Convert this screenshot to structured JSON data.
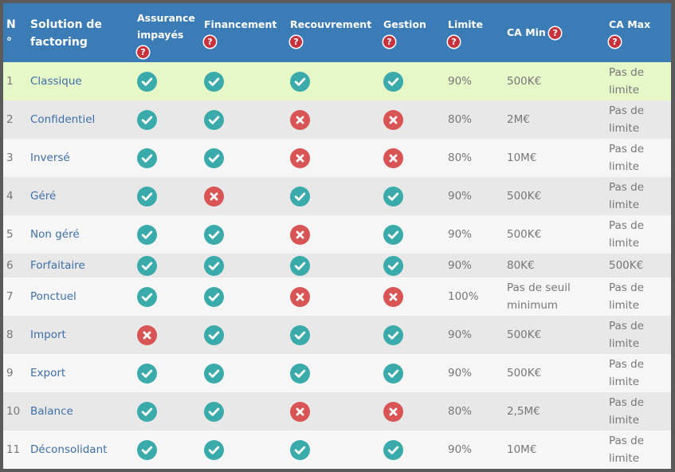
{
  "headers": {
    "num": "N °",
    "solution": "Solution de factoring",
    "assurance": "Assurance impayés",
    "financement": "Financement",
    "recouvrement": "Recouvrement",
    "gestion": "Gestion",
    "limite": "Limite",
    "ca_min": "CA Min",
    "ca_max": "CA Max",
    "help_glyph": "?"
  },
  "colors": {
    "header_bg": "#3b7bb6",
    "yes": "#3aabaa",
    "no": "#d95555",
    "help": "#c8323c",
    "highlight_row": "#e6f7c8"
  },
  "rows": [
    {
      "num": "1",
      "name": "Classique",
      "assurance": true,
      "financement": true,
      "recouvrement": true,
      "gestion": true,
      "limite": "90%",
      "ca_min": "500K€",
      "ca_max": "Pas de limite"
    },
    {
      "num": "2",
      "name": "Confidentiel",
      "assurance": true,
      "financement": true,
      "recouvrement": false,
      "gestion": false,
      "limite": "80%",
      "ca_min": "2M€",
      "ca_max": "Pas de limite"
    },
    {
      "num": "3",
      "name": "Inversé",
      "assurance": true,
      "financement": true,
      "recouvrement": false,
      "gestion": false,
      "limite": "80%",
      "ca_min": "10M€",
      "ca_max": "Pas de limite"
    },
    {
      "num": "4",
      "name": "Géré",
      "assurance": true,
      "financement": false,
      "recouvrement": true,
      "gestion": true,
      "limite": "90%",
      "ca_min": "500K€",
      "ca_max": "Pas de limite"
    },
    {
      "num": "5",
      "name": "Non géré",
      "assurance": true,
      "financement": true,
      "recouvrement": false,
      "gestion": true,
      "limite": "90%",
      "ca_min": "500K€",
      "ca_max": "Pas de limite"
    },
    {
      "num": "6",
      "name": "Forfaitaire",
      "assurance": true,
      "financement": true,
      "recouvrement": true,
      "gestion": true,
      "limite": "90%",
      "ca_min": "80K€",
      "ca_max": "500K€"
    },
    {
      "num": "7",
      "name": "Ponctuel",
      "assurance": true,
      "financement": true,
      "recouvrement": false,
      "gestion": false,
      "limite": "100%",
      "ca_min": "Pas de seuil minimum",
      "ca_max": "Pas de limite"
    },
    {
      "num": "8",
      "name": "Import",
      "assurance": false,
      "financement": true,
      "recouvrement": true,
      "gestion": true,
      "limite": "90%",
      "ca_min": "500K€",
      "ca_max": "Pas de limite"
    },
    {
      "num": "9",
      "name": "Export",
      "assurance": true,
      "financement": true,
      "recouvrement": true,
      "gestion": true,
      "limite": "90%",
      "ca_min": "500K€",
      "ca_max": "Pas de limite"
    },
    {
      "num": "10",
      "name": "Balance",
      "assurance": true,
      "financement": true,
      "recouvrement": false,
      "gestion": false,
      "limite": "80%",
      "ca_min": "2,5M€",
      "ca_max": "Pas de limite"
    },
    {
      "num": "11",
      "name": "Déconsolidant",
      "assurance": true,
      "financement": true,
      "recouvrement": true,
      "gestion": true,
      "limite": "90%",
      "ca_min": "10M€",
      "ca_max": "Pas de limite"
    }
  ]
}
